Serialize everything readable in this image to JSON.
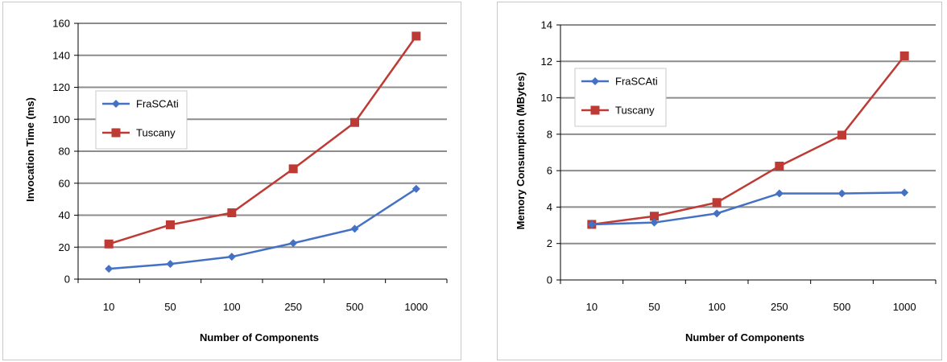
{
  "chart_data": [
    {
      "type": "line",
      "title": "",
      "xlabel": "Number of Components",
      "ylabel": "Invocation Time (ms)",
      "categories": [
        "10",
        "50",
        "100",
        "250",
        "500",
        "1000"
      ],
      "ylim": [
        0,
        160
      ],
      "yticks": [
        0,
        20,
        40,
        60,
        80,
        100,
        120,
        140,
        160
      ],
      "grid": true,
      "legend_position": "middle-left",
      "series": [
        {
          "name": "FraSCAti",
          "values": [
            6.5,
            9.5,
            14,
            22.5,
            31.5,
            56.5
          ],
          "color": "#4471c4",
          "marker": "diamond"
        },
        {
          "name": "Tuscany",
          "values": [
            22,
            34,
            41.5,
            69,
            98,
            152
          ],
          "color": "#be3a35",
          "marker": "square"
        }
      ]
    },
    {
      "type": "line",
      "title": "",
      "xlabel": "Number of Components",
      "ylabel": "Memory Consumption (MBytes)",
      "categories": [
        "10",
        "50",
        "100",
        "250",
        "500",
        "1000"
      ],
      "ylim": [
        0,
        14
      ],
      "yticks": [
        0,
        2,
        4,
        6,
        8,
        10,
        12,
        14
      ],
      "grid": true,
      "legend_position": "top-left",
      "series": [
        {
          "name": "FraSCAti",
          "values": [
            3.05,
            3.15,
            3.65,
            4.75,
            4.75,
            4.8
          ],
          "color": "#4471c4",
          "marker": "diamond"
        },
        {
          "name": "Tuscany",
          "values": [
            3.05,
            3.5,
            4.25,
            6.25,
            7.95,
            12.3
          ],
          "color": "#be3a35",
          "marker": "square"
        }
      ]
    }
  ]
}
